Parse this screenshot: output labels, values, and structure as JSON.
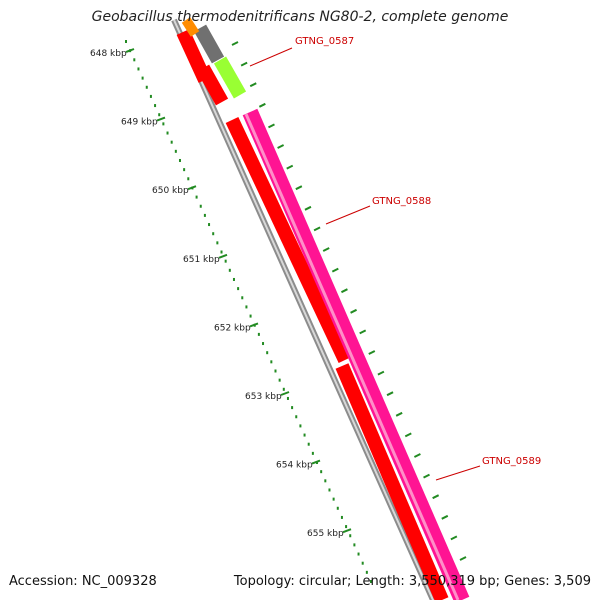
{
  "title": "Geobacillus thermodenitrificans NG80-2, complete genome",
  "accession": "Accession: NC_009328",
  "topology": "Topology: circular; Length: 3,550,319 bp; Genes: 3,509",
  "colors": {
    "backbone": "#8c8c8c",
    "forward_gene": "#ff0000",
    "reverse_gene": "#ff1493",
    "grey_gene": "#707070",
    "green_gene": "#99ff33",
    "orange_gene": "#ff8c00",
    "tick": "#228b22",
    "label": "#cc0000",
    "kbp_label": "#222222"
  },
  "scale": {
    "kbp_labels": [
      "648 kbp",
      "649 kbp",
      "650 kbp",
      "651 kbp",
      "652 kbp",
      "653 kbp",
      "654 kbp",
      "655 kbp"
    ]
  },
  "genes": [
    {
      "name": "GTNG_0587",
      "color": "green"
    },
    {
      "name": "GTNG_0588",
      "color": "forward"
    },
    {
      "name": "GTNG_0589",
      "color": "reverse"
    }
  ]
}
